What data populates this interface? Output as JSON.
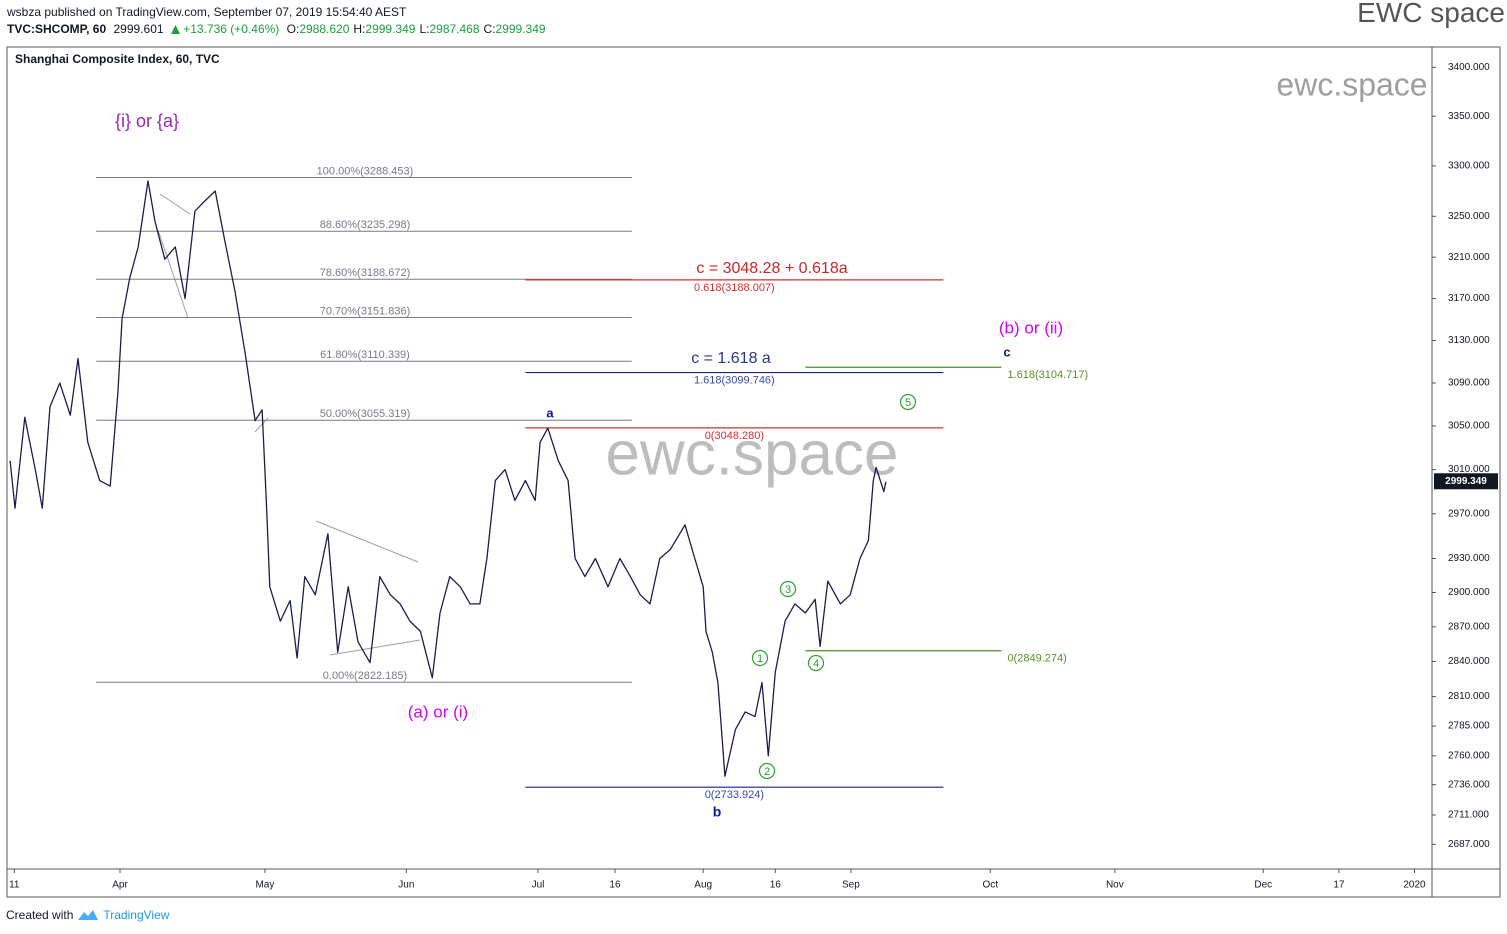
{
  "header": {
    "published": "wsbza published on TradingView.com, September 07, 2019 15:54:40 AEST",
    "brand": "EWC space",
    "symbol": "TVC:SHCOMP, 60",
    "last": "2999.601",
    "change": "+13.736 (+0.46%)",
    "ohlc": [
      {
        "label": "O:",
        "value": "2988.620"
      },
      {
        "label": "H:",
        "value": "2999.349"
      },
      {
        "label": "L:",
        "value": "2987.468"
      },
      {
        "label": "C:",
        "value": "2999.349"
      }
    ]
  },
  "watermarks": {
    "center": "ewc.space",
    "corner": "ewc.space"
  },
  "footer": {
    "created": "Created with",
    "brand": "TradingView"
  },
  "chart_data": {
    "type": "line",
    "title": "Shanghai Composite Index, 60, TVC",
    "log_scale": true,
    "grid": false,
    "color": "#1c1d4f",
    "x": [
      0.3,
      1,
      2.4,
      3.9,
      4.9,
      6,
      7.4,
      8.9,
      10,
      11.4,
      13.1,
      14.6,
      15.7,
      16.3,
      17.4,
      18.6,
      20,
      21,
      22.4,
      23.9,
      25.3,
      26.7,
      28.1,
      29.6,
      31,
      32.4,
      33.9,
      35.3,
      36.3,
      36.9,
      37.4,
      38.9,
      40.3,
      41.3,
      42.4,
      43.9,
      45.7,
      47.1,
      48.6,
      50,
      51.7,
      53.1,
      54.6,
      56,
      57.4,
      58.9,
      60.6,
      61.7,
      63.1,
      64.6,
      66,
      67.4,
      68.4,
      69.6,
      71,
      72.4,
      73.9,
      75.3,
      76,
      77.1,
      78.6,
      80,
      81,
      82.4,
      83.9,
      85.7,
      87.4,
      88.9,
      90.3,
      91.7,
      93.1,
      94.6,
      96.7,
      98.1,
      99.3,
      99.7,
      100.6,
      101.4,
      102,
      102.4,
      103.9,
      105.3,
      106.7,
      107.7,
      108.6,
      109.6,
      111,
      112.4,
      113.9,
      115.3,
      116,
      117.1,
      118.9,
      120.3,
      121.7,
      122.9,
      123.6,
      124,
      125.1,
      125.4
    ],
    "values": [
      3018,
      2975,
      3058,
      3010,
      2975,
      3068,
      3090,
      3060,
      3113,
      3035,
      3000,
      2995,
      3081,
      3151,
      3190,
      3220,
      3285,
      3245,
      3208,
      3220,
      3170,
      3255,
      3265,
      3275,
      3225,
      3178,
      3117,
      3055,
      3065,
      2982,
      2905,
      2875,
      2893,
      2843,
      2914,
      2898,
      2952,
      2848,
      2905,
      2857,
      2839,
      2914,
      2898,
      2890,
      2875,
      2866,
      2826,
      2882,
      2914,
      2905,
      2890,
      2890,
      2930,
      3000,
      3010,
      2982,
      3000,
      2982,
      3035,
      3048,
      3018,
      3000,
      2930,
      2914,
      2930,
      2905,
      2930,
      2914,
      2898,
      2890,
      2930,
      2938,
      2960,
      2930,
      2905,
      2866,
      2848,
      2822,
      2775,
      2743,
      2782,
      2797,
      2793,
      2822,
      2760,
      2831,
      2875,
      2890,
      2882,
      2894,
      2853,
      2910,
      2890,
      2898,
      2930,
      2946,
      3000,
      3012,
      2990,
      2999
    ],
    "xlim": [
      0,
      203.4
    ],
    "ylim": [
      2667,
      3421
    ],
    "xticks": [
      {
        "value": 0.9,
        "label": "11"
      },
      {
        "value": 16,
        "label": "Apr"
      },
      {
        "value": 36.7,
        "label": "May"
      },
      {
        "value": 56.9,
        "label": "Jun"
      },
      {
        "value": 75.7,
        "label": "Jul"
      },
      {
        "value": 86.7,
        "label": "16"
      },
      {
        "value": 99.3,
        "label": "Aug"
      },
      {
        "value": 109.6,
        "label": "16"
      },
      {
        "value": 120.4,
        "label": "Sep"
      },
      {
        "value": 140.3,
        "label": "Oct"
      },
      {
        "value": 158.1,
        "label": "Nov"
      },
      {
        "value": 179.3,
        "label": "Dec"
      },
      {
        "value": 190.1,
        "label": "17"
      },
      {
        "value": 200.9,
        "label": "2020"
      }
    ],
    "yticks": [
      {
        "value": 3400,
        "label": "3400.000"
      },
      {
        "value": 3350,
        "label": "3350.000"
      },
      {
        "value": 3300,
        "label": "3300.000"
      },
      {
        "value": 3250,
        "label": "3250.000"
      },
      {
        "value": 3210,
        "label": "3210.000"
      },
      {
        "value": 3170,
        "label": "3170.000"
      },
      {
        "value": 3130,
        "label": "3130.000"
      },
      {
        "value": 3090,
        "label": "3090.000"
      },
      {
        "value": 3050,
        "label": "3050.000"
      },
      {
        "value": 3010,
        "label": "3010.000"
      },
      {
        "value": 2970,
        "label": "2970.000"
      },
      {
        "value": 2930,
        "label": "2930.000"
      },
      {
        "value": 2900,
        "label": "2900.000"
      },
      {
        "value": 2870,
        "label": "2870.000"
      },
      {
        "value": 2840,
        "label": "2840.000"
      },
      {
        "value": 2810,
        "label": "2810.000"
      },
      {
        "value": 2785,
        "label": "2785.000"
      },
      {
        "value": 2760,
        "label": "2760.000"
      },
      {
        "value": 2736,
        "label": "2736.000"
      },
      {
        "value": 2711,
        "label": "2711.000"
      },
      {
        "value": 2687,
        "label": "2687.000"
      }
    ],
    "last_price": 2999.349,
    "fib_retracement": {
      "color": "#787b86",
      "x_range": [
        12.6,
        89.1
      ],
      "levels": [
        {
          "price": 3288.453,
          "label": "100.00%(3288.453)"
        },
        {
          "price": 3235.298,
          "label": "88.60%(3235.298)"
        },
        {
          "price": 3188.672,
          "label": "78.60%(3188.672)"
        },
        {
          "price": 3151.836,
          "label": "70.70%(3151.836)"
        },
        {
          "price": 3110.339,
          "label": "61.80%(3110.339)"
        },
        {
          "price": 3055.319,
          "label": "50.00%(3055.319)"
        },
        {
          "price": 2822.185,
          "label": "0.00%(2822.185)"
        }
      ]
    },
    "extensions": [
      {
        "color": "#d32f2f",
        "x_range": [
          73.9,
          133.6
        ],
        "label_side": "center",
        "lines": [
          {
            "price": 3188.007,
            "label": "0.618(3188.007)"
          },
          {
            "price": 3048.28,
            "label": "0(3048.280)"
          }
        ]
      },
      {
        "color": "#1a237e",
        "label_color": "#3949ab",
        "x_range": [
          73.9,
          133.6
        ],
        "label_side": "center",
        "lines": [
          {
            "price": 3099.746,
            "label": "1.618(3099.746)"
          },
          {
            "price": 2733.924,
            "label": "0(2733.924)"
          }
        ]
      },
      {
        "color": "#4c8c2b",
        "label_color": "#5a8f29",
        "x_range": [
          113.9,
          141.9
        ],
        "label_side": "right",
        "lines": [
          {
            "price": 3104.717,
            "label": "1.618(3104.717)"
          },
          {
            "price": 2849.274,
            "label": "0(2849.274)"
          }
        ]
      }
    ],
    "annotations": [
      {
        "text": "{i} or {a}",
        "color": "#9c27b0"
      },
      {
        "text": "(a) or (i)",
        "color": "#d500f9"
      },
      {
        "text": "(b) or (ii)",
        "color": "#d500f9"
      },
      {
        "text": "a",
        "color": "#0d1b8c"
      },
      {
        "text": "b",
        "color": "#0d1b8c"
      },
      {
        "text": "c",
        "color": "#0d1b8c"
      },
      {
        "text": "c = 3048.28 + 0.618a",
        "color": "#c62828"
      },
      {
        "text": "c = 1.618 a",
        "color": "#283593"
      },
      {
        "text": "1",
        "color": "#2e9e2e",
        "circled": true
      },
      {
        "text": "2",
        "color": "#2e9e2e",
        "circled": true
      },
      {
        "text": "3",
        "color": "#2e9e2e",
        "circled": true
      },
      {
        "text": "4",
        "color": "#2e9e2e",
        "circled": true
      },
      {
        "text": "5",
        "color": "#2e9e2e",
        "circled": true
      }
    ]
  }
}
